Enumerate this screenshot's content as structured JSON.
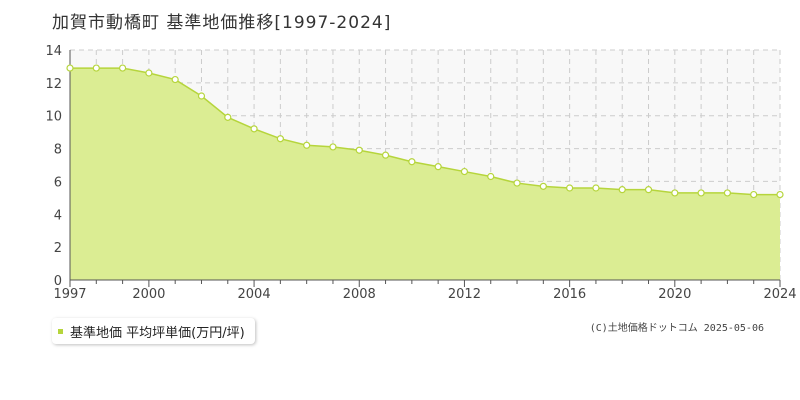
{
  "title": "加賀市動橋町 基準地価推移[1997-2024]",
  "legend_label": "基準地価 平均坪単価(万円/坪)",
  "copyright": "(C)土地価格ドットコム 2025-05-06",
  "colors": {
    "fill": "#dbed93",
    "line": "#b6d53c",
    "grid": "#cccccc",
    "axis": "#555555",
    "plot_bg": "#f8f8f8"
  },
  "chart_data": {
    "type": "area",
    "title": "加賀市動橋町 基準地価推移[1997-2024]",
    "xlabel": "",
    "ylabel": "",
    "xlim": [
      1997,
      2024
    ],
    "ylim": [
      0,
      14
    ],
    "x_ticks": [
      1997,
      2000,
      2004,
      2008,
      2012,
      2016,
      2020,
      2024
    ],
    "y_ticks": [
      0,
      2,
      4,
      6,
      8,
      10,
      12,
      14
    ],
    "grid": true,
    "legend_position": "bottom-left",
    "series": [
      {
        "name": "基準地価 平均坪単価(万円/坪)",
        "x": [
          1997,
          1998,
          1999,
          2000,
          2001,
          2002,
          2003,
          2004,
          2005,
          2006,
          2007,
          2008,
          2009,
          2010,
          2011,
          2012,
          2013,
          2014,
          2015,
          2016,
          2017,
          2018,
          2019,
          2020,
          2021,
          2022,
          2023,
          2024
        ],
        "values": [
          12.9,
          12.9,
          12.9,
          12.6,
          12.2,
          11.2,
          9.9,
          9.2,
          8.6,
          8.2,
          8.1,
          7.9,
          7.6,
          7.2,
          6.9,
          6.6,
          6.3,
          5.9,
          5.7,
          5.6,
          5.6,
          5.5,
          5.5,
          5.3,
          5.3,
          5.3,
          5.2,
          5.2
        ]
      }
    ]
  }
}
